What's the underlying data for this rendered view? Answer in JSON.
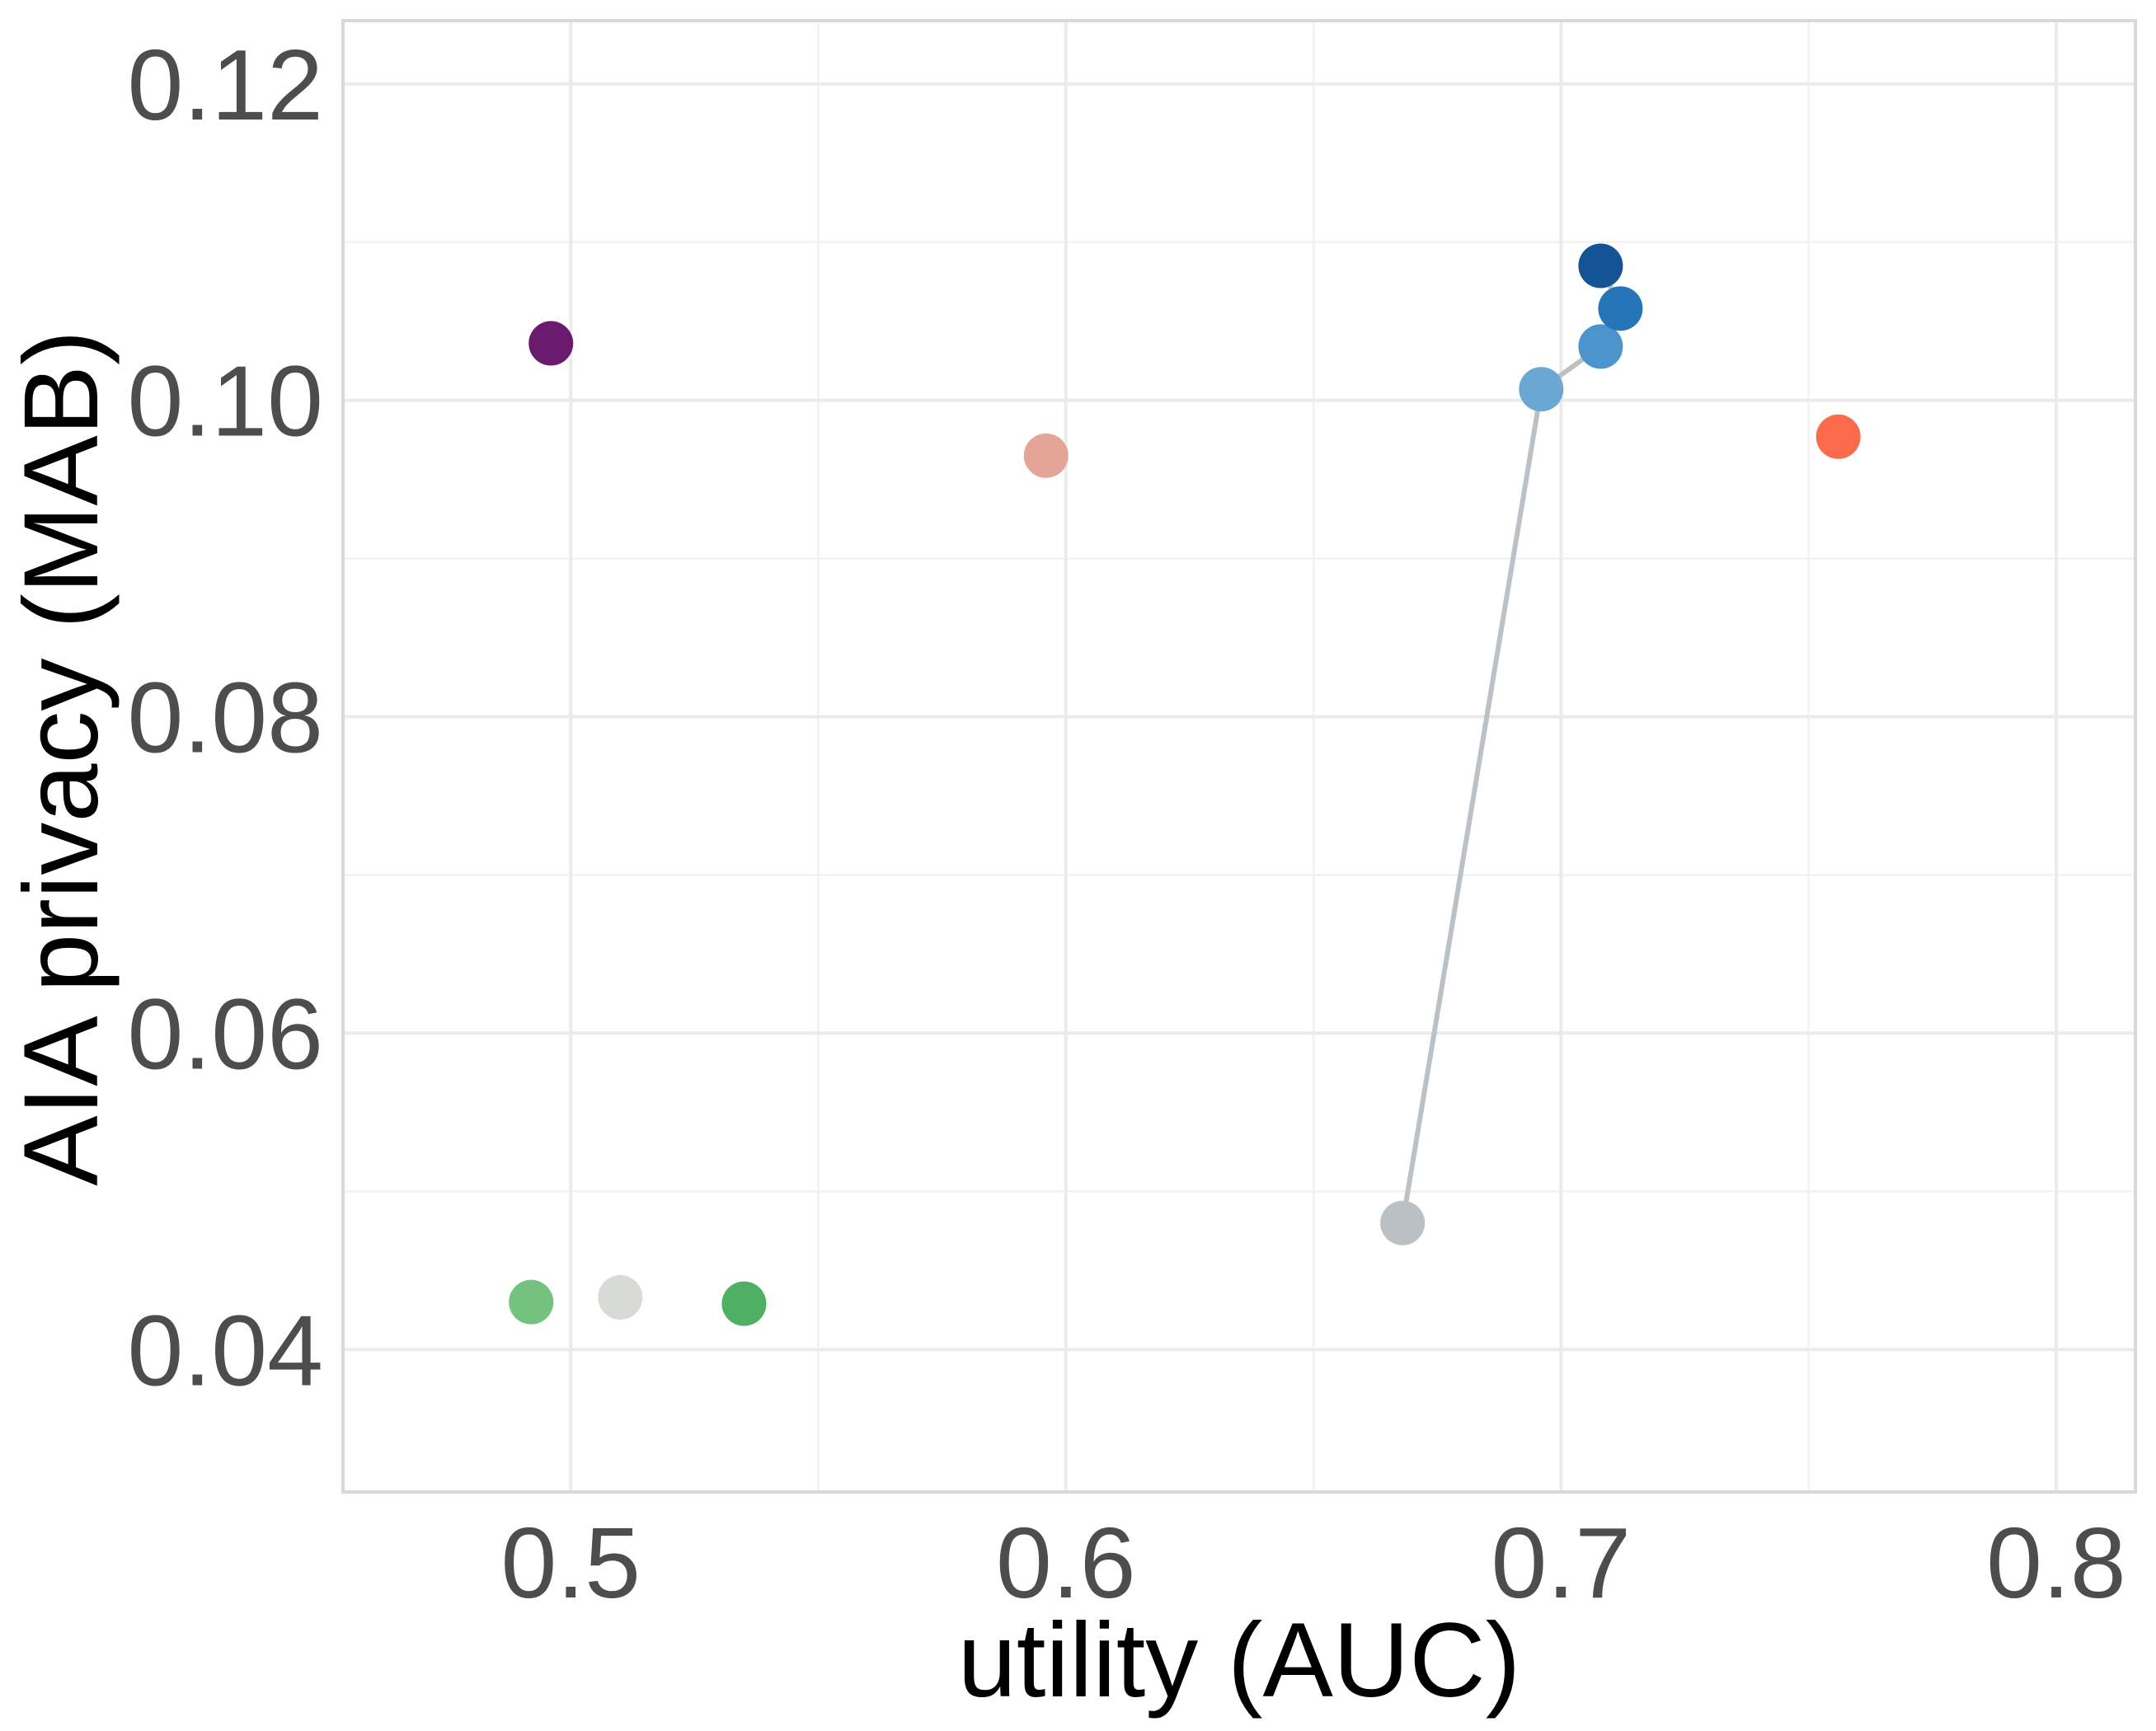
{
  "chart_data": {
    "type": "scatter",
    "title": "",
    "xlabel": "utility (AUC)",
    "ylabel": "AIA privacy (MAB)",
    "xlim": [
      0.454,
      0.816
    ],
    "ylim": [
      0.031,
      0.124
    ],
    "x_ticks": [
      0.5,
      0.6,
      0.7,
      0.8
    ],
    "x_tick_labels": [
      "0.5",
      "0.6",
      "0.7",
      "0.8"
    ],
    "y_ticks": [
      0.04,
      0.06,
      0.08,
      0.1,
      0.12
    ],
    "y_tick_labels": [
      "0.04",
      "0.06",
      "0.08",
      "0.10",
      "0.12"
    ],
    "grid": true,
    "legend": "none",
    "points": [
      {
        "x": 0.496,
        "y": 0.1036,
        "color": "#6a1b6e"
      },
      {
        "x": 0.596,
        "y": 0.0965,
        "color": "#e3a696"
      },
      {
        "x": 0.756,
        "y": 0.0977,
        "color": "#fc6b4b"
      },
      {
        "x": 0.492,
        "y": 0.043,
        "color": "#74c27e"
      },
      {
        "x": 0.51,
        "y": 0.0433,
        "color": "#d8dad6"
      },
      {
        "x": 0.535,
        "y": 0.0429,
        "color": "#4fb063"
      },
      {
        "x": 0.668,
        "y": 0.048,
        "color": "#bbc0c4"
      },
      {
        "x": 0.696,
        "y": 0.1007,
        "color": "#6aa8d3"
      },
      {
        "x": 0.708,
        "y": 0.1034,
        "color": "#4b94cc"
      },
      {
        "x": 0.712,
        "y": 0.1058,
        "color": "#2675b9"
      },
      {
        "x": 0.708,
        "y": 0.1085,
        "color": "#155494"
      }
    ],
    "path": [
      {
        "x": 0.668,
        "y": 0.048
      },
      {
        "x": 0.696,
        "y": 0.1007
      },
      {
        "x": 0.708,
        "y": 0.1034
      },
      {
        "x": 0.712,
        "y": 0.1058
      },
      {
        "x": 0.708,
        "y": 0.1085
      }
    ]
  }
}
